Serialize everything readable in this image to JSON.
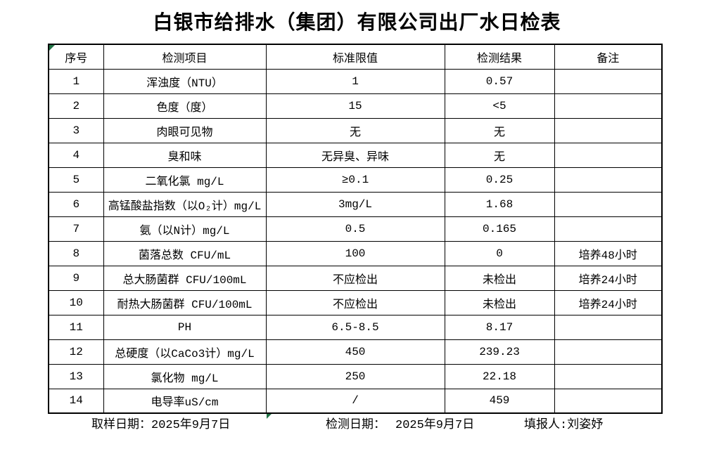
{
  "title": "白银市给排水（集团）有限公司出厂水日检表",
  "table": {
    "headers": [
      "序号",
      "检测项目",
      "标准限值",
      "检测结果",
      "备注"
    ],
    "rows": [
      [
        "1",
        "浑浊度（NTU）",
        "1",
        "0.57",
        ""
      ],
      [
        "2",
        "色度（度）",
        "15",
        "<5",
        ""
      ],
      [
        "3",
        "肉眼可见物",
        "无",
        "无",
        ""
      ],
      [
        "4",
        "臭和味",
        "无异臭、异味",
        "无",
        ""
      ],
      [
        "5",
        "二氧化氯 mg/L",
        "≥0.1",
        "0.25",
        ""
      ],
      [
        "6",
        "高锰酸盐指数（以O₂计）mg/L",
        "3mg/L",
        "1.68",
        ""
      ],
      [
        "7",
        "氨（以N计）mg/L",
        "0.5",
        "0.165",
        ""
      ],
      [
        "8",
        "菌落总数 CFU/mL",
        "100",
        "0",
        "培养48小时"
      ],
      [
        "9",
        "总大肠菌群 CFU/100mL",
        "不应检出",
        "未检出",
        "培养24小时"
      ],
      [
        "10",
        "耐热大肠菌群 CFU/100mL",
        "不应检出",
        "未检出",
        "培养24小时"
      ],
      [
        "11",
        "PH",
        "6.5-8.5",
        "8.17",
        ""
      ],
      [
        "12",
        "总硬度（以CaCo3计）mg/L",
        "450",
        "239.23",
        ""
      ],
      [
        "13",
        "氯化物 mg/L",
        "250",
        "22.18",
        ""
      ],
      [
        "14",
        "电导率uS/cm",
        "/",
        "459",
        ""
      ]
    ]
  },
  "footer": {
    "sampling_label": "取样日期：",
    "sampling_date": "2025年9月7日",
    "test_label": "检测日期：",
    "test_date": "2025年9月7日",
    "reporter_label": "填报人:",
    "reporter_name": "刘姿妤"
  },
  "icons": {
    "cell_error_marker": "excel-green-triangle"
  },
  "colors": {
    "marker_green": "#217346",
    "border": "#000000",
    "background": "#ffffff",
    "text": "#000000"
  }
}
